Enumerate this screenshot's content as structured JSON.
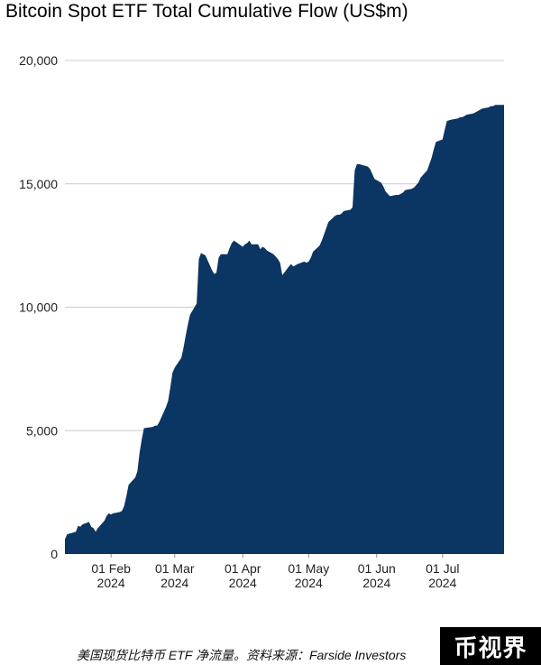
{
  "caption": "美国现货比特币 ETF 净流量。资料来源：Farside Investors",
  "watermark": "币视界",
  "chart_data": {
    "type": "area",
    "title": "Bitcoin Spot ETF Total Cumulative Flow (US$m)",
    "xlabel": "",
    "ylabel": "",
    "ylim": [
      0,
      20000
    ],
    "yticks": [
      0,
      5000,
      10000,
      15000,
      20000
    ],
    "ytick_labels": [
      "0",
      "5,000",
      "10,000",
      "15,000",
      "20,000"
    ],
    "xrange": [
      "2024-01-11",
      "2024-07-29"
    ],
    "xticks": [
      {
        "date": "2024-02-01",
        "label": [
          "01 Feb",
          "2024"
        ]
      },
      {
        "date": "2024-03-01",
        "label": [
          "01 Mar",
          "2024"
        ]
      },
      {
        "date": "2024-04-01",
        "label": [
          "01 Apr",
          "2024"
        ]
      },
      {
        "date": "2024-05-01",
        "label": [
          "01 May",
          "2024"
        ]
      },
      {
        "date": "2024-06-01",
        "label": [
          "01 Jun",
          "2024"
        ]
      },
      {
        "date": "2024-07-01",
        "label": [
          "01 Jul",
          "2024"
        ]
      }
    ],
    "grid": true,
    "fill_color": "#0b3563",
    "grid_color": "#cccccc",
    "series": [
      {
        "name": "",
        "x": [
          "2024-01-11",
          "2024-01-12",
          "2024-01-16",
          "2024-01-17",
          "2024-01-18",
          "2024-01-19",
          "2024-01-22",
          "2024-01-23",
          "2024-01-24",
          "2024-01-25",
          "2024-01-26",
          "2024-01-29",
          "2024-01-30",
          "2024-01-31",
          "2024-02-01",
          "2024-02-02",
          "2024-02-05",
          "2024-02-06",
          "2024-02-07",
          "2024-02-08",
          "2024-02-09",
          "2024-02-12",
          "2024-02-13",
          "2024-02-14",
          "2024-02-15",
          "2024-02-16",
          "2024-02-20",
          "2024-02-21",
          "2024-02-22",
          "2024-02-23",
          "2024-02-26",
          "2024-02-27",
          "2024-02-28",
          "2024-02-29",
          "2024-03-01",
          "2024-03-04",
          "2024-03-05",
          "2024-03-06",
          "2024-03-07",
          "2024-03-08",
          "2024-03-11",
          "2024-03-12",
          "2024-03-13",
          "2024-03-14",
          "2024-03-15",
          "2024-03-18",
          "2024-03-19",
          "2024-03-20",
          "2024-03-21",
          "2024-03-22",
          "2024-03-25",
          "2024-03-26",
          "2024-03-27",
          "2024-03-28",
          "2024-04-01",
          "2024-04-02",
          "2024-04-03",
          "2024-04-04",
          "2024-04-05",
          "2024-04-08",
          "2024-04-09",
          "2024-04-10",
          "2024-04-11",
          "2024-04-12",
          "2024-04-15",
          "2024-04-16",
          "2024-04-17",
          "2024-04-18",
          "2024-04-19",
          "2024-04-22",
          "2024-04-23",
          "2024-04-24",
          "2024-04-25",
          "2024-04-26",
          "2024-04-29",
          "2024-04-30",
          "2024-05-01",
          "2024-05-02",
          "2024-05-03",
          "2024-05-06",
          "2024-05-07",
          "2024-05-08",
          "2024-05-09",
          "2024-05-10",
          "2024-05-13",
          "2024-05-14",
          "2024-05-15",
          "2024-05-16",
          "2024-05-17",
          "2024-05-20",
          "2024-05-21",
          "2024-05-22",
          "2024-05-23",
          "2024-05-24",
          "2024-05-28",
          "2024-05-29",
          "2024-05-30",
          "2024-05-31",
          "2024-06-03",
          "2024-06-04",
          "2024-06-05",
          "2024-06-06",
          "2024-06-07",
          "2024-06-10",
          "2024-06-11",
          "2024-06-12",
          "2024-06-13",
          "2024-06-14",
          "2024-06-17",
          "2024-06-18",
          "2024-06-20",
          "2024-06-21",
          "2024-06-24",
          "2024-06-25",
          "2024-06-26",
          "2024-06-27",
          "2024-06-28",
          "2024-07-01",
          "2024-07-02",
          "2024-07-03",
          "2024-07-05",
          "2024-07-08",
          "2024-07-09",
          "2024-07-10",
          "2024-07-11",
          "2024-07-12",
          "2024-07-15",
          "2024-07-16",
          "2024-07-17",
          "2024-07-18",
          "2024-07-19",
          "2024-07-22",
          "2024-07-23",
          "2024-07-24",
          "2024-07-25",
          "2024-07-26",
          "2024-07-29"
        ],
        "values": [
          600,
          800,
          900,
          1150,
          1100,
          1200,
          1300,
          1100,
          1050,
          900,
          1050,
          1350,
          1550,
          1650,
          1600,
          1650,
          1700,
          1750,
          1950,
          2350,
          2800,
          3100,
          3350,
          4100,
          4650,
          5100,
          5150,
          5200,
          5200,
          5350,
          5950,
          6200,
          6750,
          7350,
          7550,
          7950,
          8350,
          8850,
          9300,
          9700,
          10150,
          11950,
          12200,
          12150,
          12100,
          11500,
          11350,
          11400,
          12000,
          12150,
          12150,
          12400,
          12600,
          12700,
          12450,
          12550,
          12600,
          12700,
          12550,
          12550,
          12350,
          12450,
          12400,
          12300,
          12150,
          12050,
          11950,
          11800,
          11300,
          11650,
          11750,
          11650,
          11700,
          11750,
          11850,
          11800,
          11850,
          12000,
          12250,
          12500,
          12700,
          12950,
          13200,
          13450,
          13700,
          13750,
          13750,
          13800,
          13900,
          13950,
          14050,
          15550,
          15800,
          15800,
          15700,
          15600,
          15400,
          15200,
          15050,
          14900,
          14700,
          14600,
          14500,
          14550,
          14550,
          14600,
          14650,
          14750,
          14800,
          14850,
          15050,
          15250,
          15550,
          15800,
          16050,
          16400,
          16700,
          16800,
          17200,
          17550,
          17600,
          17650,
          17700,
          17700,
          17750,
          17800,
          17850,
          17900,
          17950,
          18000,
          18050,
          18100,
          18150,
          18150,
          18200,
          18200,
          18200
        ]
      }
    ]
  }
}
